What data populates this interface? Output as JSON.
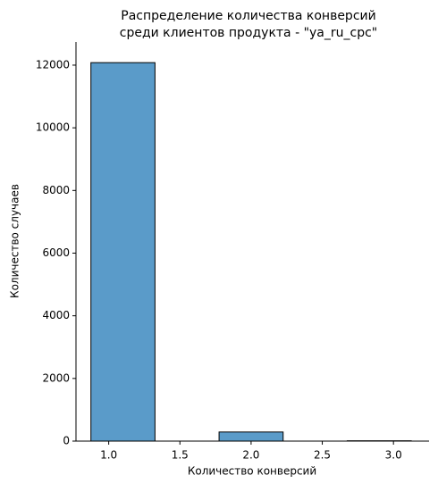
{
  "chart_data": {
    "type": "histogram",
    "title": [
      "Распределение количества конверсий",
      "среди клиентов продукта - \"ya_ru_cpc\""
    ],
    "x_label": "Количество конверсий",
    "y_label": "Количество случаев",
    "bins": [
      0.875,
      1.325,
      1.775,
      2.225,
      2.675,
      3.125
    ],
    "counts": [
      12080,
      0,
      290,
      0,
      10
    ],
    "color": "#5a9bc9",
    "edgecolor": "#000000",
    "xlim": [
      0.77,
      3.25
    ],
    "ylim": [
      0,
      12740
    ],
    "xticks": [
      {
        "value": 1,
        "label": "1.0"
      },
      {
        "value": 1.5,
        "label": "1.5"
      },
      {
        "value": 2,
        "label": "2.0"
      },
      {
        "value": 2.5,
        "label": "2.5"
      },
      {
        "value": 3,
        "label": "3.0"
      }
    ],
    "yticks": [
      0,
      2000,
      4000,
      6000,
      8000,
      10000,
      12000
    ]
  }
}
